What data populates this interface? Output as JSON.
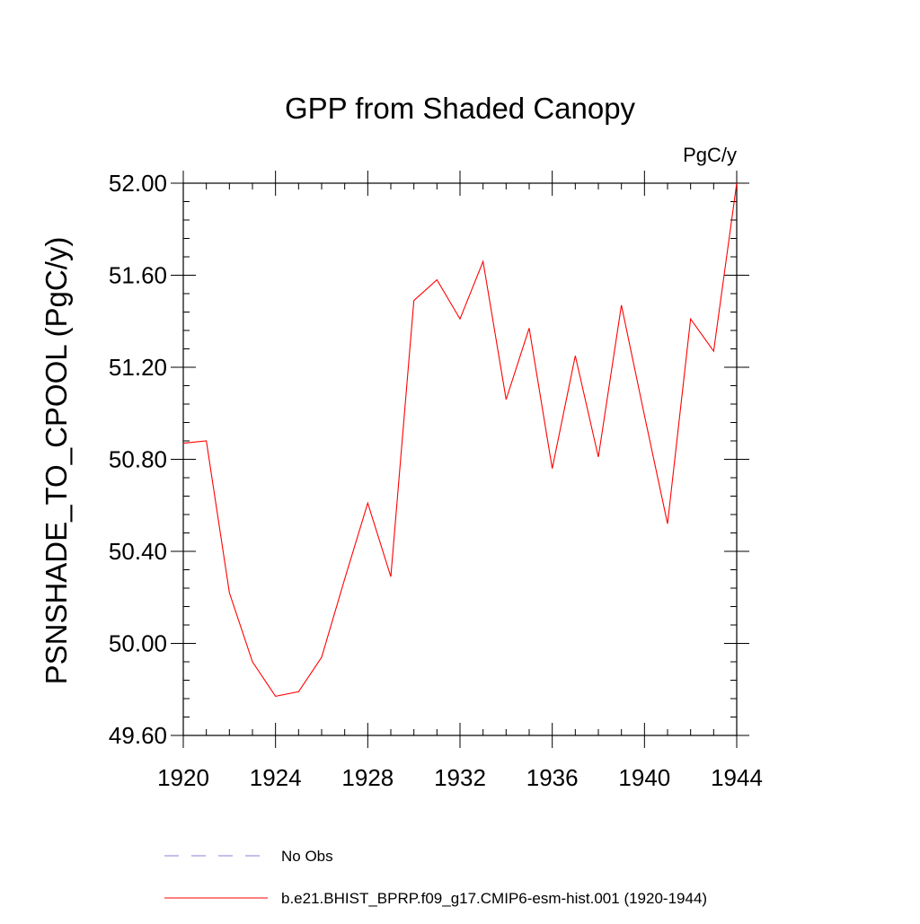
{
  "chart_data": {
    "type": "line",
    "title": "GPP from Shaded Canopy",
    "units": "PgC/y",
    "xlabel": "",
    "ylabel": "PSNSHADE_TO_CPOOL  (PgC/y)",
    "xlim": [
      1920,
      1944
    ],
    "ylim": [
      49.6,
      52.0
    ],
    "x_ticks": [
      1920,
      1924,
      1928,
      1932,
      1936,
      1940,
      1944
    ],
    "x_tick_labels": [
      "1920",
      "1924",
      "1928",
      "1932",
      "1936",
      "1940",
      "1944"
    ],
    "y_ticks": [
      49.6,
      50.0,
      50.4,
      50.8,
      51.2,
      51.6,
      52.0
    ],
    "y_tick_labels": [
      "49.60",
      "50.00",
      "50.40",
      "50.80",
      "51.20",
      "51.60",
      "52.00"
    ],
    "x_minor_step": 1,
    "y_minor_step": 0.08,
    "grid": false,
    "legend_position": "bottom-center",
    "series": [
      {
        "name": "b.e21.BHIST_BPRP.f09_g17.CMIP6-esm-hist.001 (1920-1944)",
        "color": "#ff0000",
        "style": "solid",
        "x": [
          1920,
          1921,
          1922,
          1923,
          1924,
          1925,
          1926,
          1927,
          1928,
          1929,
          1930,
          1931,
          1932,
          1933,
          1934,
          1935,
          1936,
          1937,
          1938,
          1939,
          1940,
          1941,
          1942,
          1943,
          1944
        ],
        "values": [
          50.87,
          50.88,
          50.22,
          49.92,
          49.77,
          49.79,
          49.94,
          50.28,
          50.61,
          50.29,
          51.49,
          51.58,
          51.41,
          51.66,
          51.06,
          51.37,
          50.76,
          51.25,
          50.81,
          51.47,
          50.99,
          50.52,
          51.41,
          51.27,
          52.0
        ]
      }
    ],
    "legend": [
      {
        "label": "No Obs",
        "color": "#8a82d8",
        "style": "dashed"
      },
      {
        "label": "b.e21.BHIST_BPRP.f09_g17.CMIP6-esm-hist.001 (1920-1944)",
        "color": "#ff0000",
        "style": "solid"
      }
    ]
  }
}
